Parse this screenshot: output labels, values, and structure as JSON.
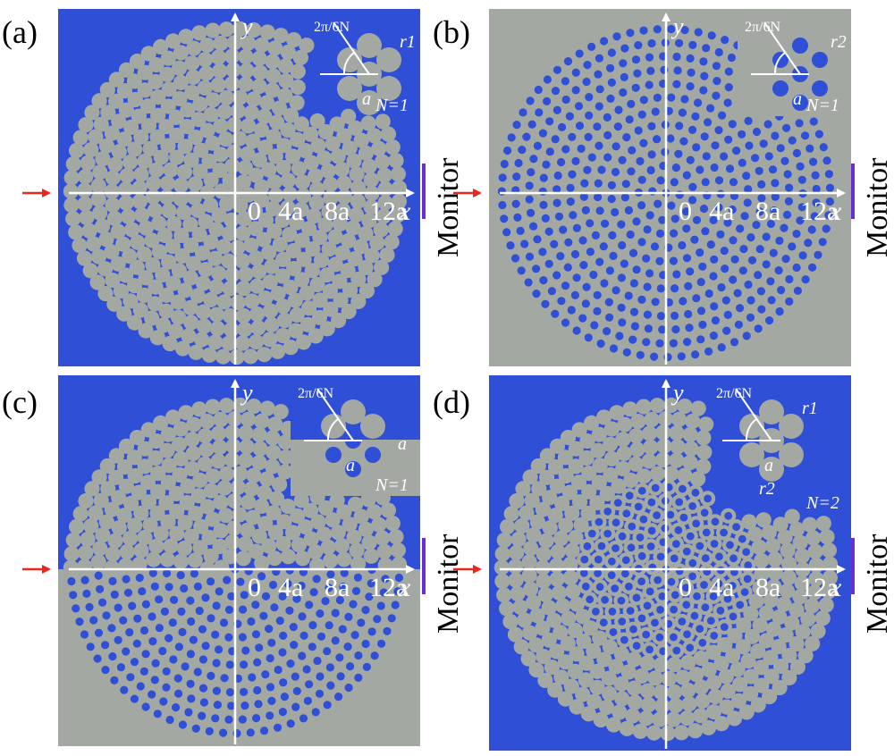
{
  "figure": {
    "panels": [
      {
        "label": "(a)",
        "background": "#2f4fd6",
        "rod_color": "#a4a8a3",
        "structure": "rods",
        "inset": {
          "angle": "2π/6N",
          "radius": "r1",
          "lattice": "a",
          "order": "N=1"
        },
        "axes": {
          "y": "y",
          "x": "x",
          "ticks": [
            "0",
            "4a",
            "8a",
            "12a"
          ]
        },
        "monitor": "Monitor"
      },
      {
        "label": "(b)",
        "background": "#a4a8a3",
        "rod_color": "#2f4fd6",
        "structure": "holes",
        "inset": {
          "angle": "2π/6N",
          "radius": "r2",
          "lattice": "a",
          "order": "N=1"
        },
        "axes": {
          "y": "y",
          "x": "x",
          "ticks": [
            "0",
            "4a",
            "8a",
            "12a"
          ]
        },
        "monitor": "Monitor"
      },
      {
        "label": "(c)",
        "background": "#2f4fd6",
        "rod_color": "#a4a8a3",
        "structure": "mixed",
        "inset": {
          "angle": "2π/6N",
          "lattice": "a",
          "offset": "a",
          "order": "N=1"
        },
        "axes": {
          "y": "y",
          "x": "x",
          "ticks": [
            "0",
            "4a",
            "8a",
            "12a"
          ]
        },
        "monitor": "Monitor"
      },
      {
        "label": "(d)",
        "background": "#2f4fd6",
        "rod_color": "#a4a8a3",
        "structure": "radial",
        "inset": {
          "angle": "2π/6N",
          "radius_outer": "r1",
          "radius_inner": "r2",
          "lattice": "a",
          "order": "N=2"
        },
        "axes": {
          "y": "y",
          "x": "x",
          "ticks": [
            "0",
            "4a",
            "8a",
            "12a"
          ]
        },
        "monitor": "Monitor"
      }
    ],
    "colors": {
      "blue": "#2f4fd6",
      "gray": "#a4a8a3",
      "axis": "#ffffff",
      "source_arrow": "#e8281e",
      "monitor_bar": "#6a2fd0"
    }
  }
}
